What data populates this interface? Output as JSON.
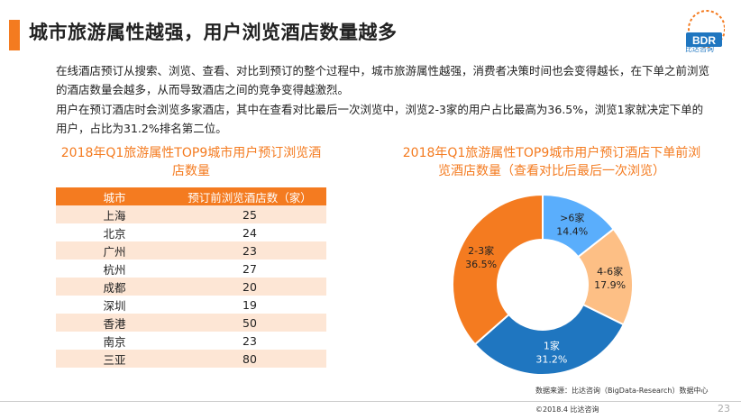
{
  "title": "城市旅游属性越强，用户浏览酒店数量越多",
  "logo": {
    "mark": "BDR",
    "text": "比达咨询"
  },
  "paragraphs": [
    "在线酒店预订从搜索、浏览、查看、对比到预订的整个过程中，城市旅游属性越强，消费者决策时间也会变得越长，在下单之前浏览的酒店数量会越多，从而导致酒店之间的竞争变得越激烈。",
    "用户在预订酒店时会浏览多家酒店，其中在查看对比最后一次浏览中，浏览2-3家的用户占比最高为36.5%，浏览1家就决定下单的用户，占比为31.2%排名第二位。"
  ],
  "table": {
    "title": "2018年Q1旅游属性TOP9城市用户预订浏览酒店数量",
    "headers": [
      "城市",
      "预订前浏览酒店数（家）"
    ],
    "rows": [
      [
        "上海",
        "25"
      ],
      [
        "北京",
        "24"
      ],
      [
        "广州",
        "23"
      ],
      [
        "杭州",
        "27"
      ],
      [
        "成都",
        "20"
      ],
      [
        "深圳",
        "19"
      ],
      [
        "香港",
        "50"
      ],
      [
        "南京",
        "23"
      ],
      [
        "三亚",
        "80"
      ]
    ]
  },
  "chart_title": "2018年Q1旅游属性TOP9城市用户预订酒店下单前浏览酒店数量（查看对比后最后一次浏览）",
  "chart_data": {
    "type": "pie",
    "title": "2018年Q1旅游属性TOP9城市用户预订酒店下单前浏览酒店数量（查看对比后最后一次浏览）",
    "labels": [
      ">6家",
      "4-6家",
      "1家",
      "2-3家"
    ],
    "values": [
      14.4,
      17.9,
      31.2,
      36.5
    ],
    "value_labels": [
      "14.4%",
      "17.9%",
      "31.2%",
      "36.5%"
    ],
    "colors": [
      "#5aaefc",
      "#fdbf85",
      "#1f76c0",
      "#f47b20"
    ],
    "donut": true,
    "legend": "none"
  },
  "source": "数据来源：比达咨询（BigData-Research）数据中心",
  "copyright": "©2018.4 比达咨询",
  "page_number": "23"
}
